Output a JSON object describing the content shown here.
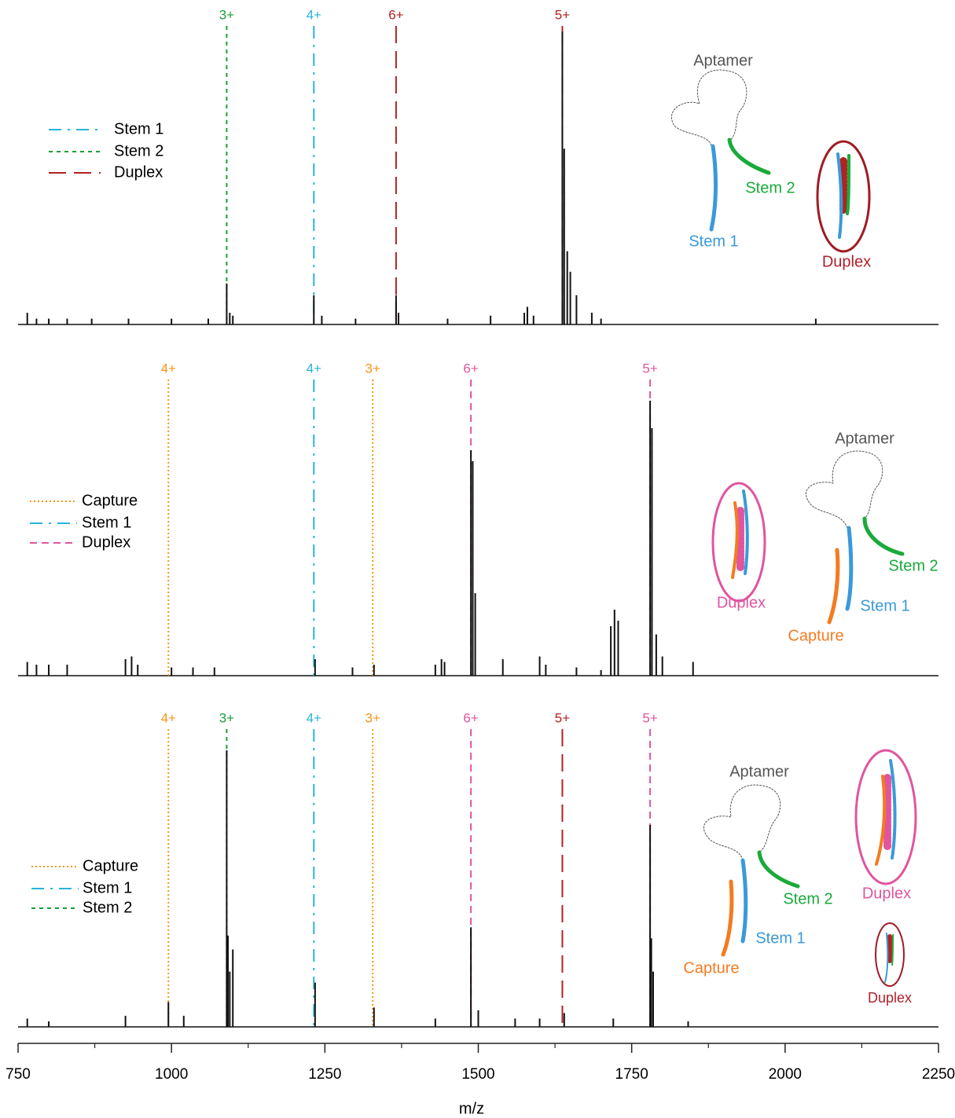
{
  "chart_data": [
    {
      "type": "stick",
      "xlim": [
        750,
        2250
      ],
      "ylim": [
        0,
        100
      ],
      "color": "#111111",
      "legend": [
        {
          "name": "Stem 1",
          "color": "#27b5d8",
          "dash": "dashdot"
        },
        {
          "name": "Stem 2",
          "color": "#1a9e3a",
          "dash": "short"
        },
        {
          "name": "Duplex",
          "color": "#b22222",
          "dash": "long"
        }
      ],
      "markers": [
        {
          "x": 1090,
          "label": "3+",
          "color": "#1a9e3a",
          "dash": "short"
        },
        {
          "x": 1232,
          "label": "4+",
          "color": "#27b5d8",
          "dash": "dashdot"
        },
        {
          "x": 1366,
          "label": "6+",
          "color": "#b22222",
          "dash": "long"
        },
        {
          "x": 1637,
          "label": "5+",
          "color": "#b22222",
          "dash": "long"
        }
      ],
      "x": [
        765,
        780,
        800,
        830,
        870,
        930,
        1000,
        1060,
        1090,
        1095,
        1100,
        1232,
        1245,
        1300,
        1366,
        1370,
        1450,
        1520,
        1575,
        1580,
        1590,
        1637,
        1640,
        1645,
        1650,
        1660,
        1685,
        1700,
        2050
      ],
      "values": [
        4,
        2,
        2,
        2,
        2,
        2,
        2,
        2,
        14,
        4,
        3,
        10,
        3,
        2,
        10,
        4,
        2,
        3,
        4,
        6,
        3,
        100,
        60,
        25,
        18,
        10,
        4,
        2,
        2
      ],
      "diagram_labels": [
        "Aptamer",
        "Stem 2",
        "Stem 1",
        "Duplex"
      ]
    },
    {
      "type": "stick",
      "xlim": [
        750,
        2250
      ],
      "ylim": [
        0,
        100
      ],
      "color": "#111111",
      "legend": [
        {
          "name": "Capture",
          "color": "#f7941d",
          "dash": "dotted"
        },
        {
          "name": "Stem 1",
          "color": "#27b5d8",
          "dash": "dashdot"
        },
        {
          "name": "Duplex",
          "color": "#e0559e",
          "dash": "dashed"
        }
      ],
      "markers": [
        {
          "x": 995,
          "label": "4+",
          "color": "#f7941d",
          "dash": "dotted"
        },
        {
          "x": 1232,
          "label": "4+",
          "color": "#27b5d8",
          "dash": "dashdot"
        },
        {
          "x": 1328,
          "label": "3+",
          "color": "#f7941d",
          "dash": "dotted"
        },
        {
          "x": 1488,
          "label": "6+",
          "color": "#e0559e",
          "dash": "dashed"
        },
        {
          "x": 1780,
          "label": "5+",
          "color": "#e0559e",
          "dash": "dashed"
        }
      ],
      "x": [
        765,
        780,
        800,
        830,
        925,
        935,
        945,
        1000,
        1035,
        1070,
        1234,
        1295,
        1330,
        1430,
        1440,
        1445,
        1488,
        1491,
        1495,
        1540,
        1600,
        1610,
        1660,
        1700,
        1716,
        1722,
        1728,
        1780,
        1783,
        1790,
        1800,
        1850
      ],
      "values": [
        5,
        4,
        4,
        4,
        6,
        7,
        4,
        3,
        3,
        3,
        6,
        3,
        4,
        4,
        6,
        5,
        82,
        78,
        30,
        6,
        7,
        4,
        3,
        2,
        18,
        24,
        20,
        100,
        90,
        15,
        7,
        5
      ],
      "diagram_labels": [
        "Duplex",
        "Aptamer",
        "Stem 2",
        "Stem 1",
        "Capture"
      ]
    },
    {
      "type": "stick",
      "xlim": [
        750,
        2250
      ],
      "ylim": [
        0,
        100
      ],
      "color": "#111111",
      "xlabel": "m/z",
      "xticks": [
        750,
        1000,
        1250,
        1500,
        1750,
        2000,
        2250
      ],
      "minor_xticks": [
        875,
        1125,
        1375,
        1625,
        1875,
        2125
      ],
      "legend": [
        {
          "name": "Capture",
          "color": "#f7941d",
          "dash": "dotted"
        },
        {
          "name": "Stem 1",
          "color": "#27b5d8",
          "dash": "dashdot"
        },
        {
          "name": "Stem 2",
          "color": "#1a9e3a",
          "dash": "short"
        }
      ],
      "markers": [
        {
          "x": 995,
          "label": "4+",
          "color": "#f7941d",
          "dash": "dotted"
        },
        {
          "x": 1090,
          "label": "3+",
          "color": "#1a9e3a",
          "dash": "short"
        },
        {
          "x": 1232,
          "label": "4+",
          "color": "#27b5d8",
          "dash": "dashdot"
        },
        {
          "x": 1328,
          "label": "3+",
          "color": "#f7941d",
          "dash": "dotted"
        },
        {
          "x": 1488,
          "label": "6+",
          "color": "#e0559e",
          "dash": "dashed"
        },
        {
          "x": 1637,
          "label": "5+",
          "color": "#b22222",
          "dash": "long"
        },
        {
          "x": 1780,
          "label": "5+",
          "color": "#e0559e",
          "dash": "dashed"
        }
      ],
      "x": [
        765,
        800,
        925,
        995,
        1020,
        1090,
        1092,
        1095,
        1100,
        1234,
        1330,
        1430,
        1488,
        1500,
        1560,
        1600,
        1640,
        1720,
        1780,
        1782,
        1785,
        1842
      ],
      "values": [
        3,
        2,
        4,
        9,
        4,
        100,
        33,
        20,
        28,
        16,
        7,
        3,
        36,
        6,
        3,
        3,
        5,
        3,
        73,
        32,
        20,
        2
      ],
      "diagram_labels": [
        "Aptamer",
        "Stem 2",
        "Stem 1",
        "Capture",
        "Duplex",
        "Duplex"
      ]
    }
  ]
}
